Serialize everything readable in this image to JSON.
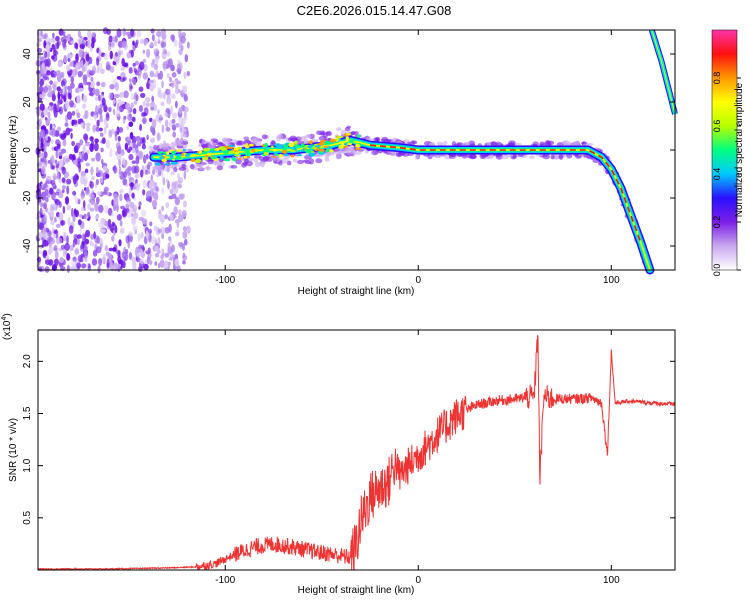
{
  "title": "C2E6.2026.015.14.47.G08",
  "chart_data": [
    {
      "type": "heatmap",
      "xlabel": "Height of straight line (km)",
      "ylabel": "Frequency (Hz)",
      "xlim": [
        -197,
        133
      ],
      "ylim": [
        -50,
        50
      ],
      "xticks": [
        -100,
        0,
        100
      ],
      "yticks": [
        -40,
        -20,
        0,
        20,
        40
      ],
      "colorbar": {
        "label": "Normalized spectral amplitude",
        "range": [
          0,
          1
        ],
        "ticks": [
          0.0,
          0.2,
          0.4,
          0.6,
          0.8
        ],
        "tick_labels": [
          "0.0",
          "0.2",
          "0.4",
          "0.6",
          "0.8"
        ],
        "colors": [
          "#ffffff",
          "#c9a8f0",
          "#7b1fe8",
          "#2a10ff",
          "#00c8ff",
          "#00ff80",
          "#b8ff00",
          "#ffff00",
          "#ff9900",
          "#ff1010",
          "#ff33aa"
        ]
      },
      "ridge": {
        "x": [
          -137,
          -125,
          -110,
          -95,
          -80,
          -65,
          -55,
          -45,
          -35,
          -25,
          -10,
          0,
          20,
          40,
          60,
          80,
          88,
          95,
          100,
          105,
          110,
          115,
          120
        ],
        "y": [
          -3,
          -3,
          -2,
          -1,
          0,
          0,
          1,
          2,
          4,
          2,
          1,
          0,
          0,
          0,
          0,
          0,
          0,
          -3,
          -8,
          -16,
          -27,
          -38,
          -50
        ]
      },
      "upper_branch": {
        "x": [
          121,
          126,
          133
        ],
        "y": [
          50,
          37,
          15
        ]
      }
    },
    {
      "type": "line",
      "xlabel": "Height of straight line (km)",
      "ylabel": "SNR (10 * v/v)",
      "multiplier_label": "(x10",
      "multiplier_exp": "4",
      "multiplier_close": ")",
      "xlim": [
        -197,
        133
      ],
      "ylim": [
        0,
        2.3
      ],
      "xticks": [
        -100,
        0,
        100
      ],
      "yticks": [
        0.5,
        1.0,
        1.5,
        2.0
      ],
      "ytick_labels": [
        "0.5",
        "1.0",
        "1.5",
        "2.0"
      ],
      "color": "#ee3333",
      "series": {
        "name": "SNR",
        "x": [
          -197,
          -160,
          -130,
          -115,
          -105,
          -95,
          -85,
          -75,
          -65,
          -55,
          -45,
          -35,
          -32,
          -30,
          -25,
          -20,
          -15,
          -12,
          -10,
          -5,
          0,
          10,
          20,
          30,
          40,
          50,
          60,
          62,
          63,
          65,
          70,
          80,
          90,
          95,
          98,
          100,
          102,
          110,
          120,
          133
        ],
        "y": [
          0.01,
          0.01,
          0.02,
          0.03,
          0.06,
          0.15,
          0.22,
          0.25,
          0.22,
          0.18,
          0.15,
          0.12,
          0.25,
          0.45,
          0.7,
          0.78,
          0.85,
          1.05,
          0.9,
          1.0,
          1.1,
          1.3,
          1.48,
          1.58,
          1.62,
          1.64,
          1.66,
          2.3,
          0.85,
          1.66,
          1.64,
          1.64,
          1.65,
          1.6,
          1.1,
          2.1,
          1.6,
          1.62,
          1.6,
          1.59
        ]
      }
    }
  ]
}
